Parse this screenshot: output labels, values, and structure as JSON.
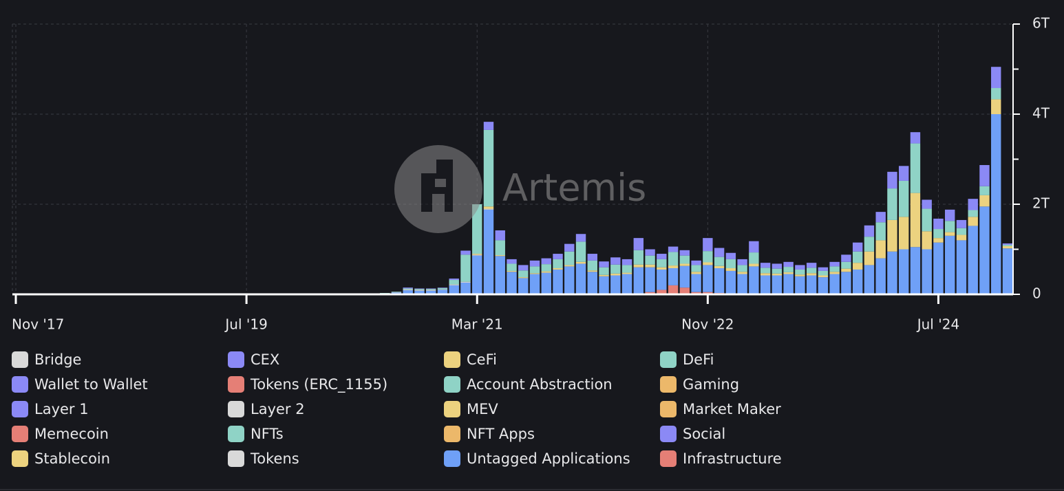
{
  "chart_data": {
    "type": "stacked_bar",
    "watermark": "Artemis",
    "x": [
      "2020-07",
      "2020-08",
      "2020-09",
      "2020-10",
      "2020-11",
      "2020-12",
      "2021-01",
      "2021-02",
      "2021-03",
      "2021-04",
      "2021-05",
      "2021-06",
      "2021-07",
      "2021-08",
      "2021-09",
      "2021-10",
      "2021-11",
      "2021-12",
      "2022-01",
      "2022-02",
      "2022-03",
      "2022-04",
      "2022-05",
      "2022-06",
      "2022-07",
      "2022-08",
      "2022-09",
      "2022-10",
      "2022-11",
      "2022-12",
      "2023-01",
      "2023-02",
      "2023-03",
      "2023-04",
      "2023-05",
      "2023-06",
      "2023-07",
      "2023-08",
      "2023-09",
      "2023-10",
      "2023-11",
      "2023-12",
      "2024-01",
      "2024-02",
      "2024-03",
      "2024-04",
      "2024-05",
      "2024-06",
      "2024-07",
      "2024-08",
      "2024-09",
      "2024-10",
      "2024-11",
      "2024-12",
      "2025-01"
    ],
    "xlim": [
      "2017-11",
      "2025-01"
    ],
    "xticks": [
      {
        "value": "2017-11",
        "label": "Nov '17"
      },
      {
        "value": "2019-07",
        "label": "Jul '19"
      },
      {
        "value": "2021-03",
        "label": "Mar '21"
      },
      {
        "value": "2022-11",
        "label": "Nov '22"
      },
      {
        "value": "2024-07",
        "label": "Jul '24"
      }
    ],
    "ylim": [
      0,
      6
    ],
    "yticks": [
      0,
      {
        "value": 2,
        "label": "2T"
      },
      {
        "value": 4,
        "label": "4T"
      },
      {
        "value": 6,
        "label": "6T"
      }
    ],
    "yticks_minor": [
      1,
      3,
      5
    ],
    "grid": true,
    "series": [
      {
        "name": "Bridge",
        "color": "#d9d9d9",
        "values": [
          0,
          0,
          0,
          0,
          0,
          0,
          0,
          0,
          0,
          0,
          0,
          0,
          0,
          0,
          0,
          0,
          0,
          0,
          0,
          0,
          0,
          0,
          0,
          0,
          0,
          0,
          0,
          0,
          0,
          0,
          0,
          0,
          0,
          0,
          0,
          0,
          0,
          0,
          0,
          0,
          0,
          0,
          0,
          0,
          0,
          0,
          0,
          0,
          0,
          0,
          0,
          0,
          0,
          0,
          0
        ]
      },
      {
        "name": "CEX",
        "color": "#8b89f5",
        "values": [
          0,
          0,
          0.02,
          0.01,
          0.01,
          0.01,
          0.03,
          0.09,
          0,
          0.18,
          0.22,
          0.1,
          0.12,
          0.13,
          0.13,
          0.12,
          0.17,
          0.17,
          0.15,
          0.13,
          0.16,
          0.13,
          0.27,
          0.14,
          0.12,
          0.12,
          0.12,
          0.1,
          0.29,
          0.2,
          0.14,
          0.13,
          0.25,
          0.11,
          0.11,
          0.11,
          0.1,
          0.11,
          0.08,
          0.1,
          0.16,
          0.2,
          0.25,
          0.23,
          0.37,
          0.33,
          0.25,
          0.2,
          0.23,
          0.25,
          0.18,
          0.25,
          0.47,
          0.47,
          0.03
        ]
      },
      {
        "name": "CeFi",
        "color": "#ecd27f",
        "values": [
          0,
          0,
          0,
          0,
          0,
          0,
          0,
          0,
          0,
          0,
          0,
          0,
          0,
          0,
          0,
          0,
          0,
          0,
          0,
          0,
          0,
          0,
          0,
          0,
          0,
          0,
          0,
          0,
          0,
          0,
          0,
          0,
          0,
          0,
          0,
          0,
          0,
          0,
          0,
          0,
          0,
          0,
          0,
          0,
          0,
          0,
          0,
          0,
          0,
          0,
          0,
          0,
          0,
          0,
          0
        ]
      },
      {
        "name": "DeFi",
        "color": "#8fd3c6",
        "values": [
          0.01,
          0.01,
          0.02,
          0.02,
          0.02,
          0.03,
          0.1,
          0.6,
          1.1,
          1.7,
          0.33,
          0.16,
          0.15,
          0.15,
          0.16,
          0.2,
          0.3,
          0.45,
          0.22,
          0.17,
          0.2,
          0.17,
          0.32,
          0.2,
          0.18,
          0.3,
          0.18,
          0.15,
          0.25,
          0.2,
          0.2,
          0.15,
          0.25,
          0.12,
          0.11,
          0.12,
          0.11,
          0.12,
          0.1,
          0.12,
          0.15,
          0.25,
          0.33,
          0.4,
          0.7,
          0.8,
          1.1,
          0.5,
          0.2,
          0.25,
          0.15,
          0.15,
          0.2,
          0.25,
          0.03
        ]
      },
      {
        "name": "Wallet to Wallet",
        "color": "#8b89f5",
        "values": [
          0,
          0,
          0,
          0,
          0,
          0,
          0,
          0,
          0,
          0,
          0,
          0,
          0,
          0,
          0,
          0,
          0,
          0,
          0,
          0,
          0,
          0,
          0,
          0,
          0,
          0,
          0,
          0,
          0,
          0,
          0,
          0,
          0,
          0,
          0,
          0,
          0,
          0,
          0,
          0,
          0,
          0,
          0,
          0,
          0,
          0,
          0,
          0,
          0,
          0,
          0,
          0,
          0,
          0,
          0
        ]
      },
      {
        "name": "Tokens (ERC_1155)",
        "color": "#e57f76",
        "values": [
          0,
          0,
          0,
          0,
          0,
          0,
          0,
          0,
          0,
          0,
          0,
          0,
          0,
          0,
          0,
          0,
          0,
          0,
          0,
          0,
          0,
          0,
          0,
          0,
          0,
          0,
          0,
          0,
          0,
          0,
          0,
          0,
          0,
          0,
          0,
          0,
          0,
          0,
          0,
          0,
          0,
          0,
          0,
          0,
          0,
          0,
          0,
          0,
          0,
          0,
          0,
          0,
          0,
          0,
          0
        ]
      },
      {
        "name": "Account Abstraction",
        "color": "#8fd3c6",
        "values": [
          0,
          0,
          0,
          0,
          0,
          0,
          0,
          0,
          0,
          0,
          0,
          0,
          0,
          0,
          0,
          0,
          0,
          0,
          0,
          0,
          0,
          0,
          0,
          0,
          0,
          0,
          0,
          0,
          0,
          0,
          0,
          0,
          0,
          0,
          0,
          0,
          0,
          0,
          0,
          0,
          0,
          0,
          0,
          0,
          0,
          0,
          0,
          0,
          0,
          0,
          0,
          0,
          0,
          0,
          0
        ]
      },
      {
        "name": "Gaming",
        "color": "#ecb86a",
        "values": [
          0,
          0,
          0,
          0,
          0,
          0,
          0,
          0,
          0,
          0,
          0,
          0,
          0,
          0,
          0,
          0,
          0,
          0,
          0,
          0,
          0,
          0,
          0,
          0,
          0,
          0,
          0,
          0,
          0,
          0,
          0,
          0,
          0,
          0,
          0,
          0,
          0,
          0,
          0,
          0,
          0,
          0,
          0,
          0,
          0,
          0,
          0,
          0,
          0,
          0,
          0,
          0,
          0,
          0,
          0
        ]
      },
      {
        "name": "Layer 1",
        "color": "#8b89f5",
        "values": [
          0,
          0,
          0,
          0,
          0,
          0,
          0,
          0,
          0,
          0,
          0,
          0,
          0,
          0,
          0,
          0,
          0,
          0,
          0,
          0,
          0,
          0,
          0,
          0,
          0,
          0,
          0,
          0,
          0,
          0,
          0,
          0,
          0,
          0,
          0,
          0,
          0,
          0,
          0,
          0,
          0,
          0,
          0,
          0,
          0,
          0,
          0,
          0,
          0,
          0,
          0,
          0,
          0,
          0,
          0
        ]
      },
      {
        "name": "Layer 2",
        "color": "#d9d9d9",
        "values": [
          0,
          0,
          0,
          0,
          0,
          0,
          0,
          0,
          0,
          0,
          0,
          0,
          0,
          0,
          0,
          0,
          0,
          0,
          0,
          0,
          0,
          0,
          0,
          0,
          0,
          0,
          0,
          0,
          0,
          0,
          0,
          0,
          0,
          0,
          0,
          0,
          0,
          0,
          0,
          0,
          0,
          0,
          0,
          0,
          0,
          0,
          0,
          0,
          0,
          0,
          0,
          0,
          0,
          0,
          0
        ]
      },
      {
        "name": "MEV",
        "color": "#ecd27f",
        "values": [
          0,
          0,
          0,
          0,
          0,
          0,
          0,
          0,
          0,
          0,
          0,
          0,
          0,
          0,
          0,
          0,
          0,
          0,
          0,
          0,
          0,
          0,
          0,
          0,
          0,
          0,
          0,
          0,
          0,
          0,
          0,
          0,
          0,
          0,
          0,
          0,
          0,
          0,
          0,
          0,
          0,
          0,
          0,
          0,
          0,
          0,
          0,
          0,
          0,
          0,
          0,
          0,
          0,
          0,
          0
        ]
      },
      {
        "name": "Market Maker",
        "color": "#ecb86a",
        "values": [
          0,
          0,
          0,
          0,
          0,
          0,
          0,
          0,
          0,
          0,
          0,
          0,
          0,
          0,
          0,
          0,
          0,
          0,
          0,
          0,
          0,
          0,
          0,
          0,
          0,
          0,
          0,
          0,
          0,
          0,
          0,
          0,
          0,
          0,
          0,
          0,
          0,
          0,
          0,
          0,
          0,
          0,
          0,
          0,
          0,
          0,
          0,
          0,
          0,
          0,
          0,
          0,
          0,
          0,
          0
        ]
      },
      {
        "name": "Memecoin",
        "color": "#e57f76",
        "values": [
          0,
          0,
          0,
          0,
          0,
          0,
          0,
          0,
          0,
          0,
          0,
          0,
          0,
          0,
          0,
          0,
          0,
          0,
          0,
          0,
          0,
          0,
          0,
          0,
          0,
          0,
          0,
          0,
          0,
          0,
          0,
          0,
          0,
          0,
          0,
          0,
          0,
          0,
          0,
          0,
          0,
          0,
          0,
          0,
          0,
          0,
          0,
          0,
          0,
          0,
          0,
          0,
          0,
          0,
          0
        ]
      },
      {
        "name": "NFTs",
        "color": "#8fd3c6",
        "values": [
          0,
          0,
          0,
          0,
          0,
          0,
          0,
          0,
          0,
          0,
          0,
          0,
          0,
          0,
          0,
          0,
          0,
          0,
          0,
          0,
          0,
          0,
          0,
          0,
          0,
          0,
          0,
          0,
          0,
          0,
          0,
          0,
          0,
          0,
          0,
          0,
          0,
          0,
          0,
          0,
          0,
          0,
          0,
          0,
          0,
          0,
          0,
          0,
          0,
          0,
          0,
          0,
          0,
          0,
          0
        ]
      },
      {
        "name": "NFT Apps",
        "color": "#ecb86a",
        "values": [
          0,
          0,
          0,
          0,
          0,
          0,
          0,
          0,
          0,
          0,
          0,
          0,
          0,
          0,
          0,
          0,
          0,
          0,
          0,
          0,
          0,
          0,
          0,
          0,
          0,
          0,
          0,
          0,
          0,
          0,
          0,
          0,
          0,
          0,
          0,
          0,
          0,
          0,
          0,
          0,
          0,
          0,
          0,
          0,
          0,
          0,
          0,
          0,
          0,
          0,
          0,
          0,
          0,
          0,
          0
        ]
      },
      {
        "name": "Social",
        "color": "#8b89f5",
        "values": [
          0,
          0,
          0,
          0,
          0,
          0,
          0,
          0,
          0,
          0,
          0,
          0,
          0,
          0,
          0,
          0,
          0,
          0,
          0,
          0,
          0,
          0,
          0,
          0,
          0,
          0,
          0,
          0,
          0,
          0,
          0,
          0,
          0,
          0,
          0,
          0,
          0,
          0,
          0,
          0,
          0,
          0,
          0,
          0,
          0,
          0,
          0,
          0,
          0,
          0,
          0,
          0,
          0,
          0,
          0
        ]
      },
      {
        "name": "Stablecoin",
        "color": "#ecd27f",
        "values": [
          0,
          0,
          0,
          0,
          0,
          0,
          0,
          0,
          0.02,
          0.05,
          0.02,
          0.02,
          0.02,
          0.02,
          0.03,
          0.03,
          0.03,
          0.04,
          0.03,
          0.03,
          0.04,
          0.03,
          0.06,
          0.06,
          0.05,
          0.06,
          0.05,
          0.05,
          0.06,
          0.05,
          0.06,
          0.05,
          0.06,
          0.05,
          0.04,
          0.04,
          0.04,
          0.05,
          0.04,
          0.05,
          0.07,
          0.15,
          0.3,
          0.4,
          0.7,
          0.72,
          1.2,
          0.4,
          0.1,
          0.08,
          0.12,
          0.2,
          0.25,
          0.33,
          0.05
        ]
      },
      {
        "name": "Tokens",
        "color": "#d9d9d9",
        "values": [
          0,
          0.01,
          0.02,
          0.02,
          0.02,
          0.01,
          0.02,
          0.02,
          0.02,
          0.02,
          0,
          0,
          0,
          0,
          0,
          0,
          0,
          0,
          0,
          0,
          0,
          0,
          0,
          0,
          0,
          0,
          0,
          0,
          0,
          0,
          0,
          0,
          0,
          0,
          0,
          0,
          0,
          0,
          0,
          0,
          0,
          0,
          0,
          0,
          0,
          0,
          0,
          0,
          0,
          0,
          0,
          0,
          0,
          0,
          0
        ]
      },
      {
        "name": "Untagged Applications",
        "color": "#6fa0f7",
        "values": [
          0.02,
          0.04,
          0.09,
          0.08,
          0.08,
          0.1,
          0.2,
          0.26,
          0.86,
          1.88,
          0.85,
          0.5,
          0.36,
          0.45,
          0.48,
          0.55,
          0.62,
          0.68,
          0.5,
          0.4,
          0.42,
          0.45,
          0.6,
          0.55,
          0.45,
          0.38,
          0.48,
          0.4,
          0.6,
          0.55,
          0.5,
          0.45,
          0.62,
          0.42,
          0.42,
          0.45,
          0.4,
          0.42,
          0.38,
          0.45,
          0.5,
          0.55,
          0.65,
          0.8,
          0.95,
          1.0,
          1.05,
          1.0,
          1.15,
          1.3,
          1.2,
          1.52,
          1.95,
          4.0,
          1.02
        ]
      },
      {
        "name": "Infrastructure",
        "color": "#e57f76",
        "values": [
          0,
          0,
          0,
          0,
          0,
          0,
          0,
          0,
          0,
          0,
          0,
          0,
          0,
          0,
          0,
          0,
          0,
          0,
          0,
          0,
          0,
          0,
          0,
          0.05,
          0.1,
          0.2,
          0.15,
          0.05,
          0.05,
          0.03,
          0.02,
          0,
          0,
          0,
          0,
          0,
          0,
          0,
          0,
          0,
          0,
          0,
          0,
          0,
          0,
          0,
          0,
          0,
          0,
          0,
          0,
          0,
          0,
          0,
          0
        ]
      }
    ]
  }
}
